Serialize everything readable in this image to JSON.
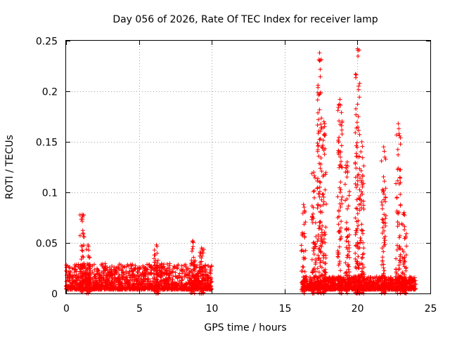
{
  "chart_data": {
    "type": "scatter",
    "title": "Day 056 of 2026, Rate Of TEC Index for receiver lamp",
    "xlabel": "GPS time / hours",
    "ylabel": "ROTI / TECUs",
    "xlim": [
      0,
      25
    ],
    "ylim": [
      0,
      0.25
    ],
    "x_ticks": [
      0,
      5,
      10,
      15,
      20,
      25
    ],
    "x_tick_labels": [
      "0",
      "5",
      "10",
      "15",
      "20",
      "25"
    ],
    "y_ticks": [
      0,
      0.05,
      0.1,
      0.15,
      0.2,
      0.25
    ],
    "y_tick_labels": [
      "0",
      "0.05",
      "0.1",
      "0.15",
      "0.2",
      "0.25"
    ],
    "grid": true,
    "marker": "+",
    "color": "#ff0000",
    "series": [
      {
        "name": "ROTI",
        "segments": [
          {
            "x_start": 0.0,
            "x_end": 10.0,
            "baseline": [
              0.004,
              0.02
            ]
          },
          {
            "x_start": 16.2,
            "x_end": 24.0,
            "baseline": [
              0.004,
              0.012
            ]
          }
        ],
        "peaks": [
          {
            "x": 1.1,
            "max": 0.078
          },
          {
            "x": 1.5,
            "max": 0.048
          },
          {
            "x": 6.2,
            "max": 0.048
          },
          {
            "x": 8.7,
            "max": 0.052
          },
          {
            "x": 9.3,
            "max": 0.045
          },
          {
            "x": 16.3,
            "max": 0.088
          },
          {
            "x": 17.0,
            "max": 0.12
          },
          {
            "x": 17.4,
            "max": 0.238
          },
          {
            "x": 17.7,
            "max": 0.17
          },
          {
            "x": 18.8,
            "max": 0.192
          },
          {
            "x": 19.3,
            "max": 0.13
          },
          {
            "x": 20.0,
            "max": 0.242
          },
          {
            "x": 20.3,
            "max": 0.15
          },
          {
            "x": 21.8,
            "max": 0.145
          },
          {
            "x": 22.8,
            "max": 0.168
          },
          {
            "x": 23.2,
            "max": 0.08
          }
        ]
      }
    ]
  }
}
